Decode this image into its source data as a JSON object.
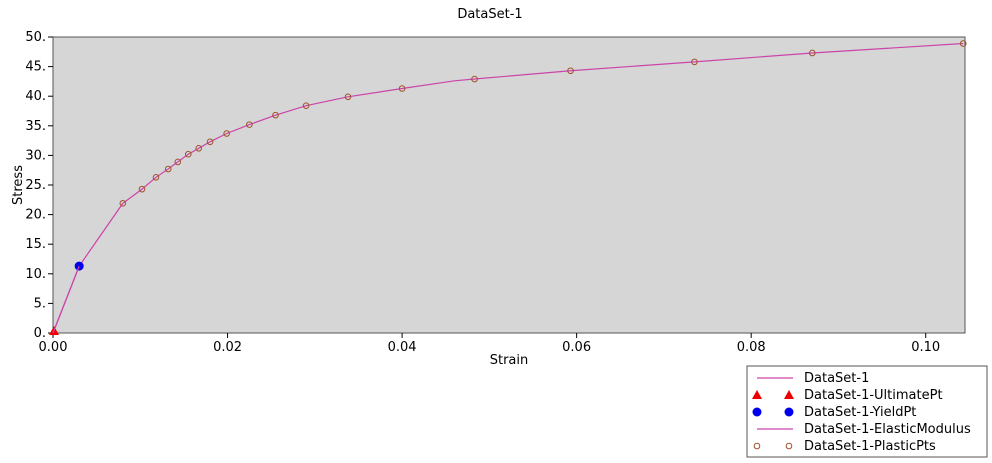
{
  "chart_data": {
    "type": "line",
    "title": "DataSet-1",
    "xlabel": "Strain",
    "ylabel": "Stress",
    "xlim": [
      0.0,
      0.1045
    ],
    "ylim": [
      0.0,
      50.0
    ],
    "x_ticks": [
      0.0,
      0.02,
      0.04,
      0.06,
      0.08,
      0.1
    ],
    "x_tick_labels": [
      "0.00",
      "0.02",
      "0.04",
      "0.06",
      "0.08",
      "0.10"
    ],
    "y_ticks": [
      0,
      5,
      10,
      15,
      20,
      25,
      30,
      35,
      40,
      45,
      50
    ],
    "y_tick_labels": [
      "0.",
      "5.",
      "10.",
      "15.",
      "20.",
      "25.",
      "30.",
      "35.",
      "40.",
      "45.",
      "50."
    ],
    "grid": false,
    "legend_position": "bottom-right-outside",
    "colors": {
      "plot_background": "#d6d6d6",
      "line": "#cc44aa",
      "ultimate": "#ee0000",
      "yield": "#0000ee",
      "plastic_marker": "#a0522d"
    },
    "series": [
      {
        "name": "DataSet-1",
        "kind": "line",
        "x": [
          0.0,
          0.003,
          0.008,
          0.0102,
          0.0118,
          0.0132,
          0.0143,
          0.0155,
          0.0167,
          0.018,
          0.0199,
          0.0225,
          0.0255,
          0.029,
          0.0338,
          0.04,
          0.046,
          0.0483,
          0.0593,
          0.0735,
          0.087,
          0.1043
        ],
        "y": [
          0.0,
          11.3,
          21.9,
          24.3,
          26.3,
          27.7,
          28.9,
          30.2,
          31.2,
          32.3,
          33.7,
          35.2,
          36.8,
          38.4,
          39.9,
          41.3,
          42.6,
          42.9,
          44.3,
          45.8,
          47.3,
          48.9
        ]
      },
      {
        "name": "DataSet-1-UltimatePt",
        "kind": "triangle",
        "x": [
          0.0
        ],
        "y": [
          0.0
        ]
      },
      {
        "name": "DataSet-1-YieldPt",
        "kind": "dot",
        "x": [
          0.003
        ],
        "y": [
          11.3
        ]
      },
      {
        "name": "DataSet-1-ElasticModulus",
        "kind": "line",
        "x": [
          0.0,
          0.003
        ],
        "y": [
          0.0,
          11.3
        ]
      },
      {
        "name": "DataSet-1-PlasticPts",
        "kind": "circle",
        "x": [
          0.008,
          0.0102,
          0.0118,
          0.0132,
          0.0143,
          0.0155,
          0.0167,
          0.018,
          0.0199,
          0.0225,
          0.0255,
          0.029,
          0.0338,
          0.04,
          0.0483,
          0.0593,
          0.0735,
          0.087,
          0.1043
        ],
        "y": [
          21.9,
          24.3,
          26.3,
          27.7,
          28.9,
          30.2,
          31.2,
          32.3,
          33.7,
          35.2,
          36.8,
          38.4,
          39.9,
          41.3,
          42.9,
          44.3,
          45.8,
          47.3,
          48.9
        ]
      }
    ]
  }
}
